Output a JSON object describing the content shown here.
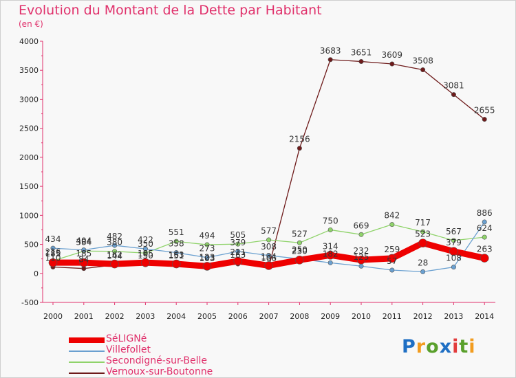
{
  "title": "Evolution du Montant de la Dette par Habitant",
  "subtitle": "(en €)",
  "logo": {
    "text": "Proxiti",
    "colors": [
      "#1f6fc4",
      "#f29c1f",
      "#5aa02c",
      "#1f6fc4",
      "#e23c3c",
      "#5aa02c",
      "#f29c1f"
    ]
  },
  "chart_data": {
    "type": "line",
    "x": [
      "2000",
      "2001",
      "2002",
      "2003",
      "2004",
      "2005",
      "2006",
      "2007",
      "2008",
      "2009",
      "2010",
      "2011",
      "2012",
      "2013",
      "2014"
    ],
    "yticks": [
      "-500",
      "0",
      "500",
      "1000",
      "1500",
      "2000",
      "2500",
      "3000",
      "3500",
      "4000"
    ],
    "ylim": [
      -500,
      4000
    ],
    "grid": false,
    "legend_position": "bottom-left",
    "series": [
      {
        "name": "Vernoux-sur-Boutonne",
        "color": "#6e1a1a",
        "values": [
          110,
          84,
          144,
          150,
          151,
          103,
          163,
          106,
          2156,
          3683,
          3651,
          3609,
          3508,
          3081,
          2655
        ],
        "labels": [
          "110",
          "84",
          "144",
          "150",
          "151",
          "103",
          "163",
          "106",
          "2156",
          "3683",
          "3651",
          "3609",
          "3508",
          "3081",
          "2655"
        ]
      },
      {
        "name": "Secondigné-sur-Belle",
        "color": "#8fd36a",
        "values": [
          216,
          384,
          380,
          350,
          551,
          494,
          505,
          577,
          527,
          750,
          669,
          842,
          717,
          567,
          624
        ],
        "labels": [
          "216",
          "384",
          "380",
          "350",
          "551",
          "494",
          "505",
          "577",
          "527",
          "750",
          "669",
          "842",
          "717",
          "567",
          "624"
        ]
      },
      {
        "name": "Villefollet",
        "color": "#6aa0d0",
        "values": [
          434,
          404,
          482,
          422,
          358,
          273,
          379,
          308,
          250,
          182,
          125,
          57,
          28,
          108,
          886
        ],
        "labels": [
          "434",
          "404",
          "482",
          "422",
          "358",
          "273",
          "379",
          "308",
          "250",
          "182",
          "125",
          "57",
          "28",
          "108",
          "886"
        ]
      },
      {
        "name": "SéLIGNé",
        "color": "#ee0000",
        "values": [
          185,
          185,
          162,
          185,
          163,
          123,
          211,
          134,
          230,
          314,
          232,
          259,
          523,
          379,
          263
        ],
        "labels": [
          "185",
          "185",
          "162",
          "185",
          "163",
          "123",
          "211",
          "134",
          "230",
          "314",
          "232",
          "259",
          "523",
          "379",
          "263"
        ]
      }
    ]
  },
  "legend": [
    {
      "label": "SéLIGNé",
      "color": "#ee0000",
      "thickness": 8
    },
    {
      "label": "Villefollet",
      "color": "#6aa0d0",
      "thickness": 2
    },
    {
      "label": "Secondigné-sur-Belle",
      "color": "#8fd36a",
      "thickness": 2
    },
    {
      "label": "Vernoux-sur-Boutonne",
      "color": "#6e1a1a",
      "thickness": 2
    }
  ]
}
